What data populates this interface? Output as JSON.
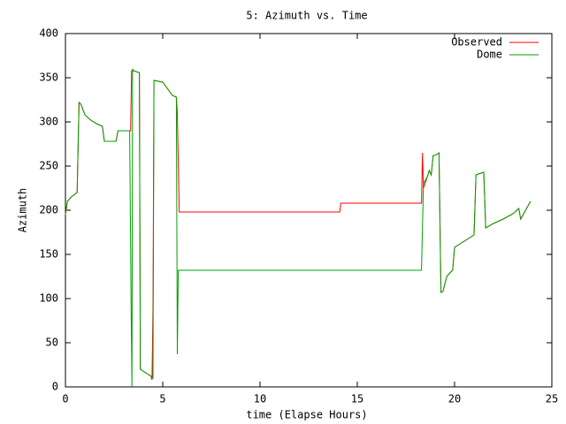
{
  "chart_data": {
    "type": "line",
    "title": "5: Azimuth vs. Time",
    "x_label": "time (Elapse Hours)",
    "y_label": "Azimuth",
    "xlim": [
      0,
      25
    ],
    "xticks": [
      0,
      5,
      10,
      15,
      20,
      25
    ],
    "ylim": [
      0,
      400
    ],
    "yticks": [
      0,
      50,
      100,
      150,
      200,
      250,
      300,
      350,
      400
    ],
    "legend": "top-right",
    "series": [
      {
        "name": "Observed",
        "color": "#ff0000",
        "x": [
          0,
          0.1,
          0.3,
          0.6,
          0.7,
          0.8,
          1.0,
          1.3,
          1.6,
          1.9,
          2.0,
          2.6,
          2.7,
          3.3,
          3.35,
          3.4,
          3.5,
          3.75,
          3.8,
          3.85,
          4.4,
          4.45,
          4.5,
          4.55,
          5.0,
          5.5,
          5.7,
          5.75,
          5.85,
          14.1,
          14.15,
          18.3,
          18.35,
          18.4,
          18.6,
          18.7,
          18.8,
          18.9,
          19.0,
          19.2,
          19.3,
          19.4,
          19.6,
          19.8,
          19.9,
          20.0,
          20.5,
          21.0,
          21.1,
          21.5,
          21.6,
          22.0,
          22.5,
          23.0,
          23.3,
          23.4,
          23.6,
          23.9
        ],
        "values": [
          195,
          210,
          215,
          220,
          322,
          320,
          308,
          302,
          298,
          295,
          278,
          278,
          290,
          290,
          290,
          358,
          358,
          356,
          356,
          20,
          12,
          8,
          90,
          347,
          345,
          330,
          328,
          310,
          198,
          198,
          208,
          208,
          265,
          225,
          238,
          245,
          240,
          262,
          262,
          265,
          107,
          108,
          125,
          130,
          132,
          158,
          165,
          172,
          240,
          243,
          180,
          185,
          190,
          196,
          202,
          190,
          198,
          210
        ]
      },
      {
        "name": "Dome",
        "color": "#00a000",
        "x": [
          0,
          0.1,
          0.3,
          0.6,
          0.7,
          0.8,
          1.0,
          1.3,
          1.6,
          1.9,
          2.0,
          2.6,
          2.7,
          3.3,
          3.38,
          3.42,
          3.45,
          3.5,
          3.75,
          3.8,
          3.85,
          4.4,
          4.5,
          4.55,
          5.0,
          5.5,
          5.7,
          5.75,
          5.8,
          5.85,
          18.3,
          18.4,
          18.6,
          18.7,
          18.8,
          18.9,
          19.0,
          19.2,
          19.3,
          19.4,
          19.6,
          19.8,
          19.9,
          20.0,
          20.5,
          21.0,
          21.1,
          21.5,
          21.6,
          22.0,
          22.5,
          23.0,
          23.3,
          23.4,
          23.6,
          23.9
        ],
        "values": [
          195,
          210,
          215,
          220,
          322,
          320,
          308,
          302,
          298,
          295,
          278,
          278,
          290,
          290,
          75,
          0,
          360,
          358,
          356,
          356,
          20,
          12,
          10,
          347,
          345,
          330,
          328,
          37,
          132,
          132,
          132,
          230,
          238,
          245,
          240,
          262,
          262,
          265,
          107,
          108,
          125,
          130,
          132,
          158,
          165,
          172,
          240,
          243,
          180,
          185,
          190,
          196,
          202,
          190,
          198,
          210
        ]
      }
    ]
  }
}
